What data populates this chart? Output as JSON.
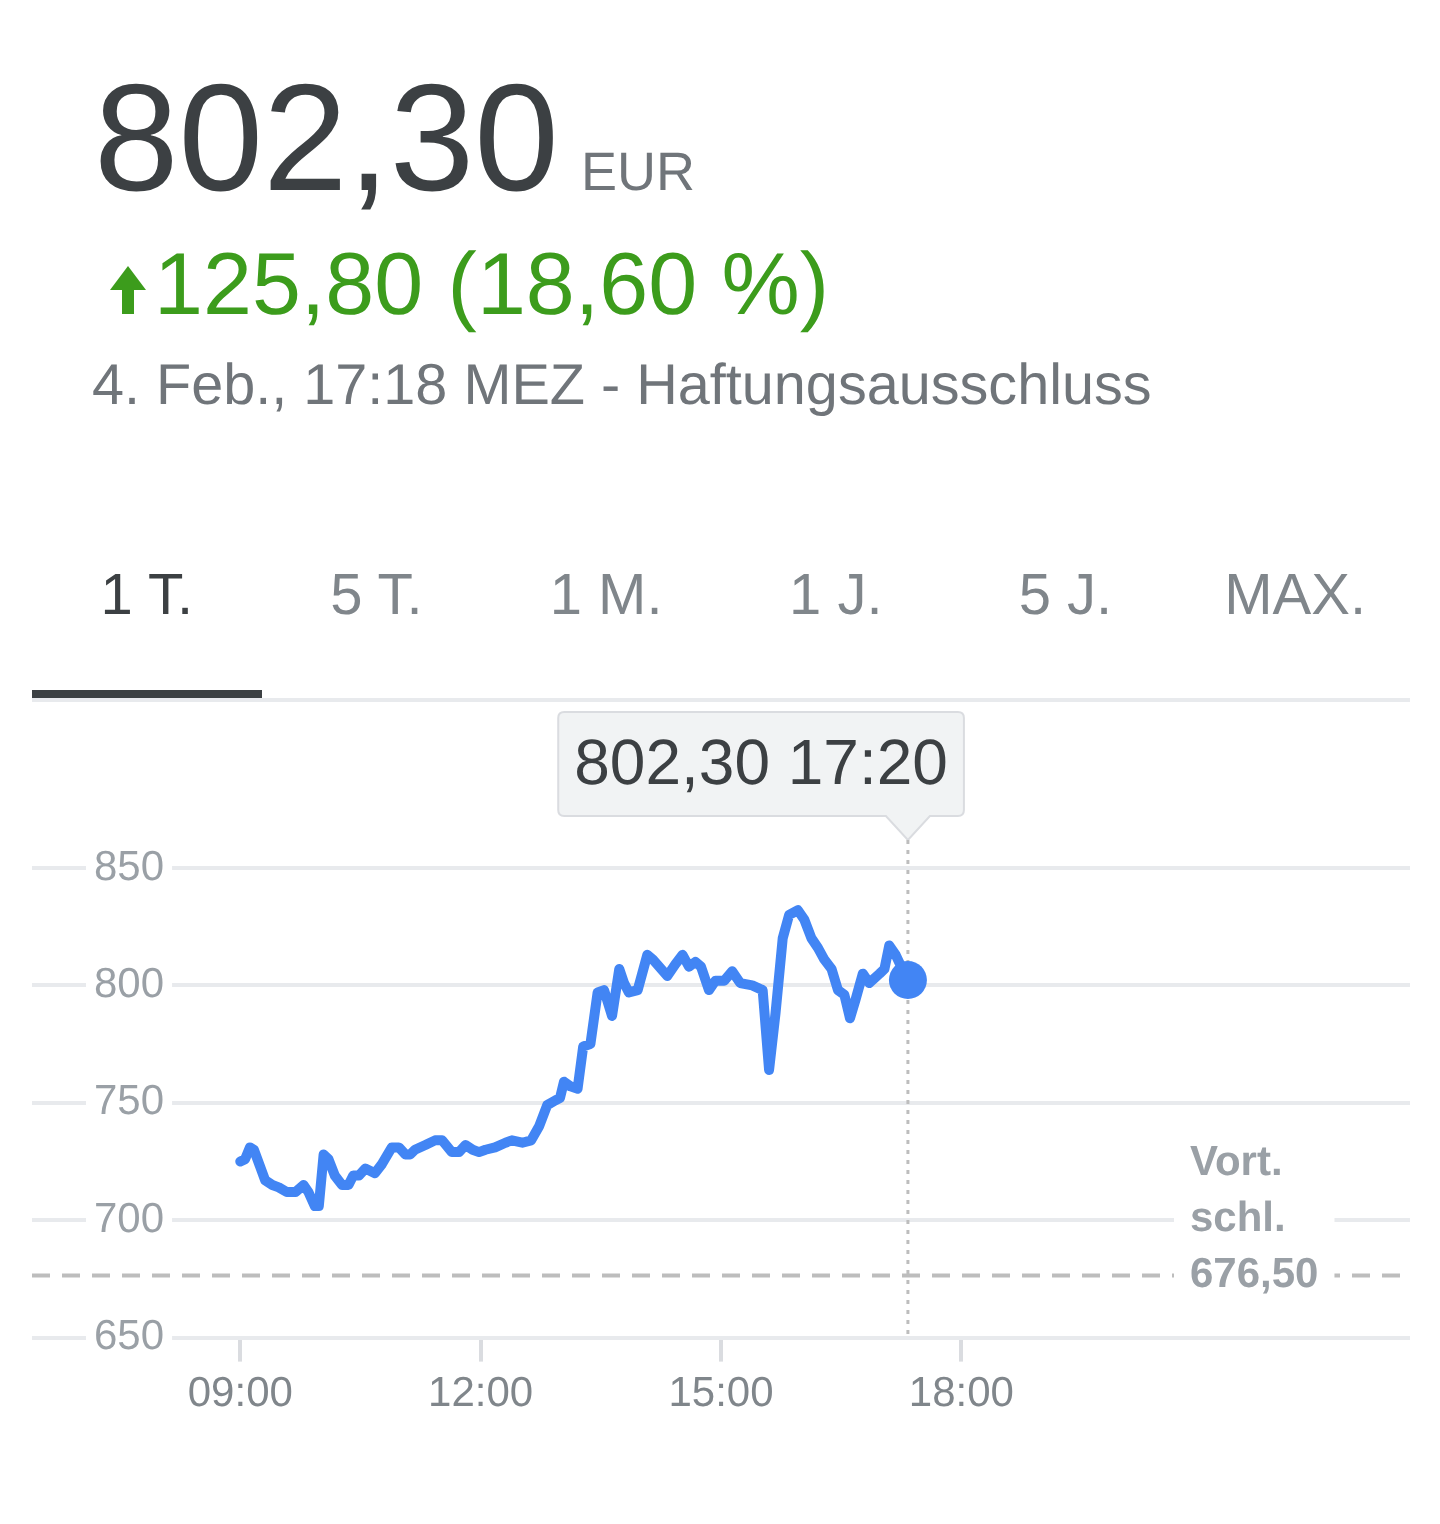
{
  "chart_data": {
    "type": "line",
    "title": "802,30",
    "subtitle": "125,80 (18,60 %)",
    "annotations": [
      "EUR",
      "4. Feb., 17:18 MEZ - Haftungsausschluss",
      "1 T.",
      "5 T.",
      "1 M.",
      "1 J.",
      "5 J.",
      "MAX."
    ],
    "xlim": [
      6.4,
      23.6
    ],
    "xticks": [
      {
        "value": 9,
        "label": "09:00"
      },
      {
        "value": 12,
        "label": "12:00"
      },
      {
        "value": 15,
        "label": "15:00"
      },
      {
        "value": 18,
        "label": "18:00"
      }
    ],
    "ylim": [
      650,
      850
    ],
    "yticks": [
      650,
      700,
      750,
      800,
      850
    ],
    "grid": "y",
    "series": [
      {
        "type": "line",
        "color": "#4285f4",
        "marker": "none",
        "x": [
          9,
          9.06,
          9.12,
          9.17,
          9.31,
          9.4,
          9.48,
          9.58,
          9.69,
          9.79,
          9.85,
          9.93,
          9.98,
          10.04,
          10.1,
          10.18,
          10.27,
          10.35,
          10.41,
          10.48,
          10.56,
          10.68,
          10.77,
          10.89,
          10.98,
          11.06,
          11.12,
          11.18,
          11.31,
          11.43,
          11.52,
          11.64,
          11.73,
          11.81,
          11.9,
          11.98,
          12.06,
          12.18,
          12.31,
          12.39,
          12.52,
          12.63,
          12.73,
          12.83,
          12.93,
          12.99,
          13.04,
          13.12,
          13.21,
          13.28,
          13.37,
          13.46,
          13.54,
          13.64,
          13.73,
          13.79,
          13.85,
          13.96,
          14.08,
          14.15,
          14.33,
          14.43,
          14.52,
          14.6,
          14.68,
          14.75,
          14.85,
          14.93,
          15.04,
          15.14,
          15.24,
          15.39,
          15.52,
          15.6,
          15.68,
          15.77,
          15.85,
          15.96,
          16.04,
          16.13,
          16.21,
          16.29,
          16.38,
          16.46,
          16.54,
          16.61,
          16.68,
          16.77,
          16.85,
          16.98,
          17.04,
          17.1,
          17.18,
          17.29,
          17.333
        ],
        "values": [
          725,
          726,
          731,
          730,
          717,
          715,
          714,
          712,
          712,
          715,
          712,
          706,
          706,
          728,
          726,
          719,
          715,
          715,
          719,
          719,
          722,
          720,
          724,
          731,
          731,
          728,
          728,
          730,
          732,
          734,
          734,
          729,
          729,
          732,
          730,
          729,
          730,
          731,
          733,
          734,
          733,
          734,
          740,
          749,
          751,
          752,
          759,
          757,
          756,
          774,
          775,
          797,
          798,
          787,
          807,
          801,
          797,
          798,
          813,
          811,
          804,
          809,
          813,
          808,
          810,
          808,
          798,
          802,
          802,
          806,
          801,
          800,
          798,
          764,
          788,
          820,
          830,
          832,
          828,
          820,
          816,
          811,
          807,
          798,
          796,
          786,
          794,
          805,
          801,
          805,
          807,
          817,
          813,
          805,
          802.3
        ]
      },
      {
        "type": "scatter",
        "color": "#4285f4",
        "marker": "circle",
        "x": [
          17.333
        ],
        "values": [
          802.3
        ]
      }
    ],
    "ref_lines": [
      {
        "axis": "y",
        "value": 676.5,
        "label": "Vort. schl. 676,50",
        "color": "#bdbdbd",
        "line_style": "dashed"
      },
      {
        "axis": "x",
        "value": 17.333,
        "label": "802,30 17:20",
        "color": "#bdbdbd",
        "line_style": "dotted"
      }
    ]
  }
}
